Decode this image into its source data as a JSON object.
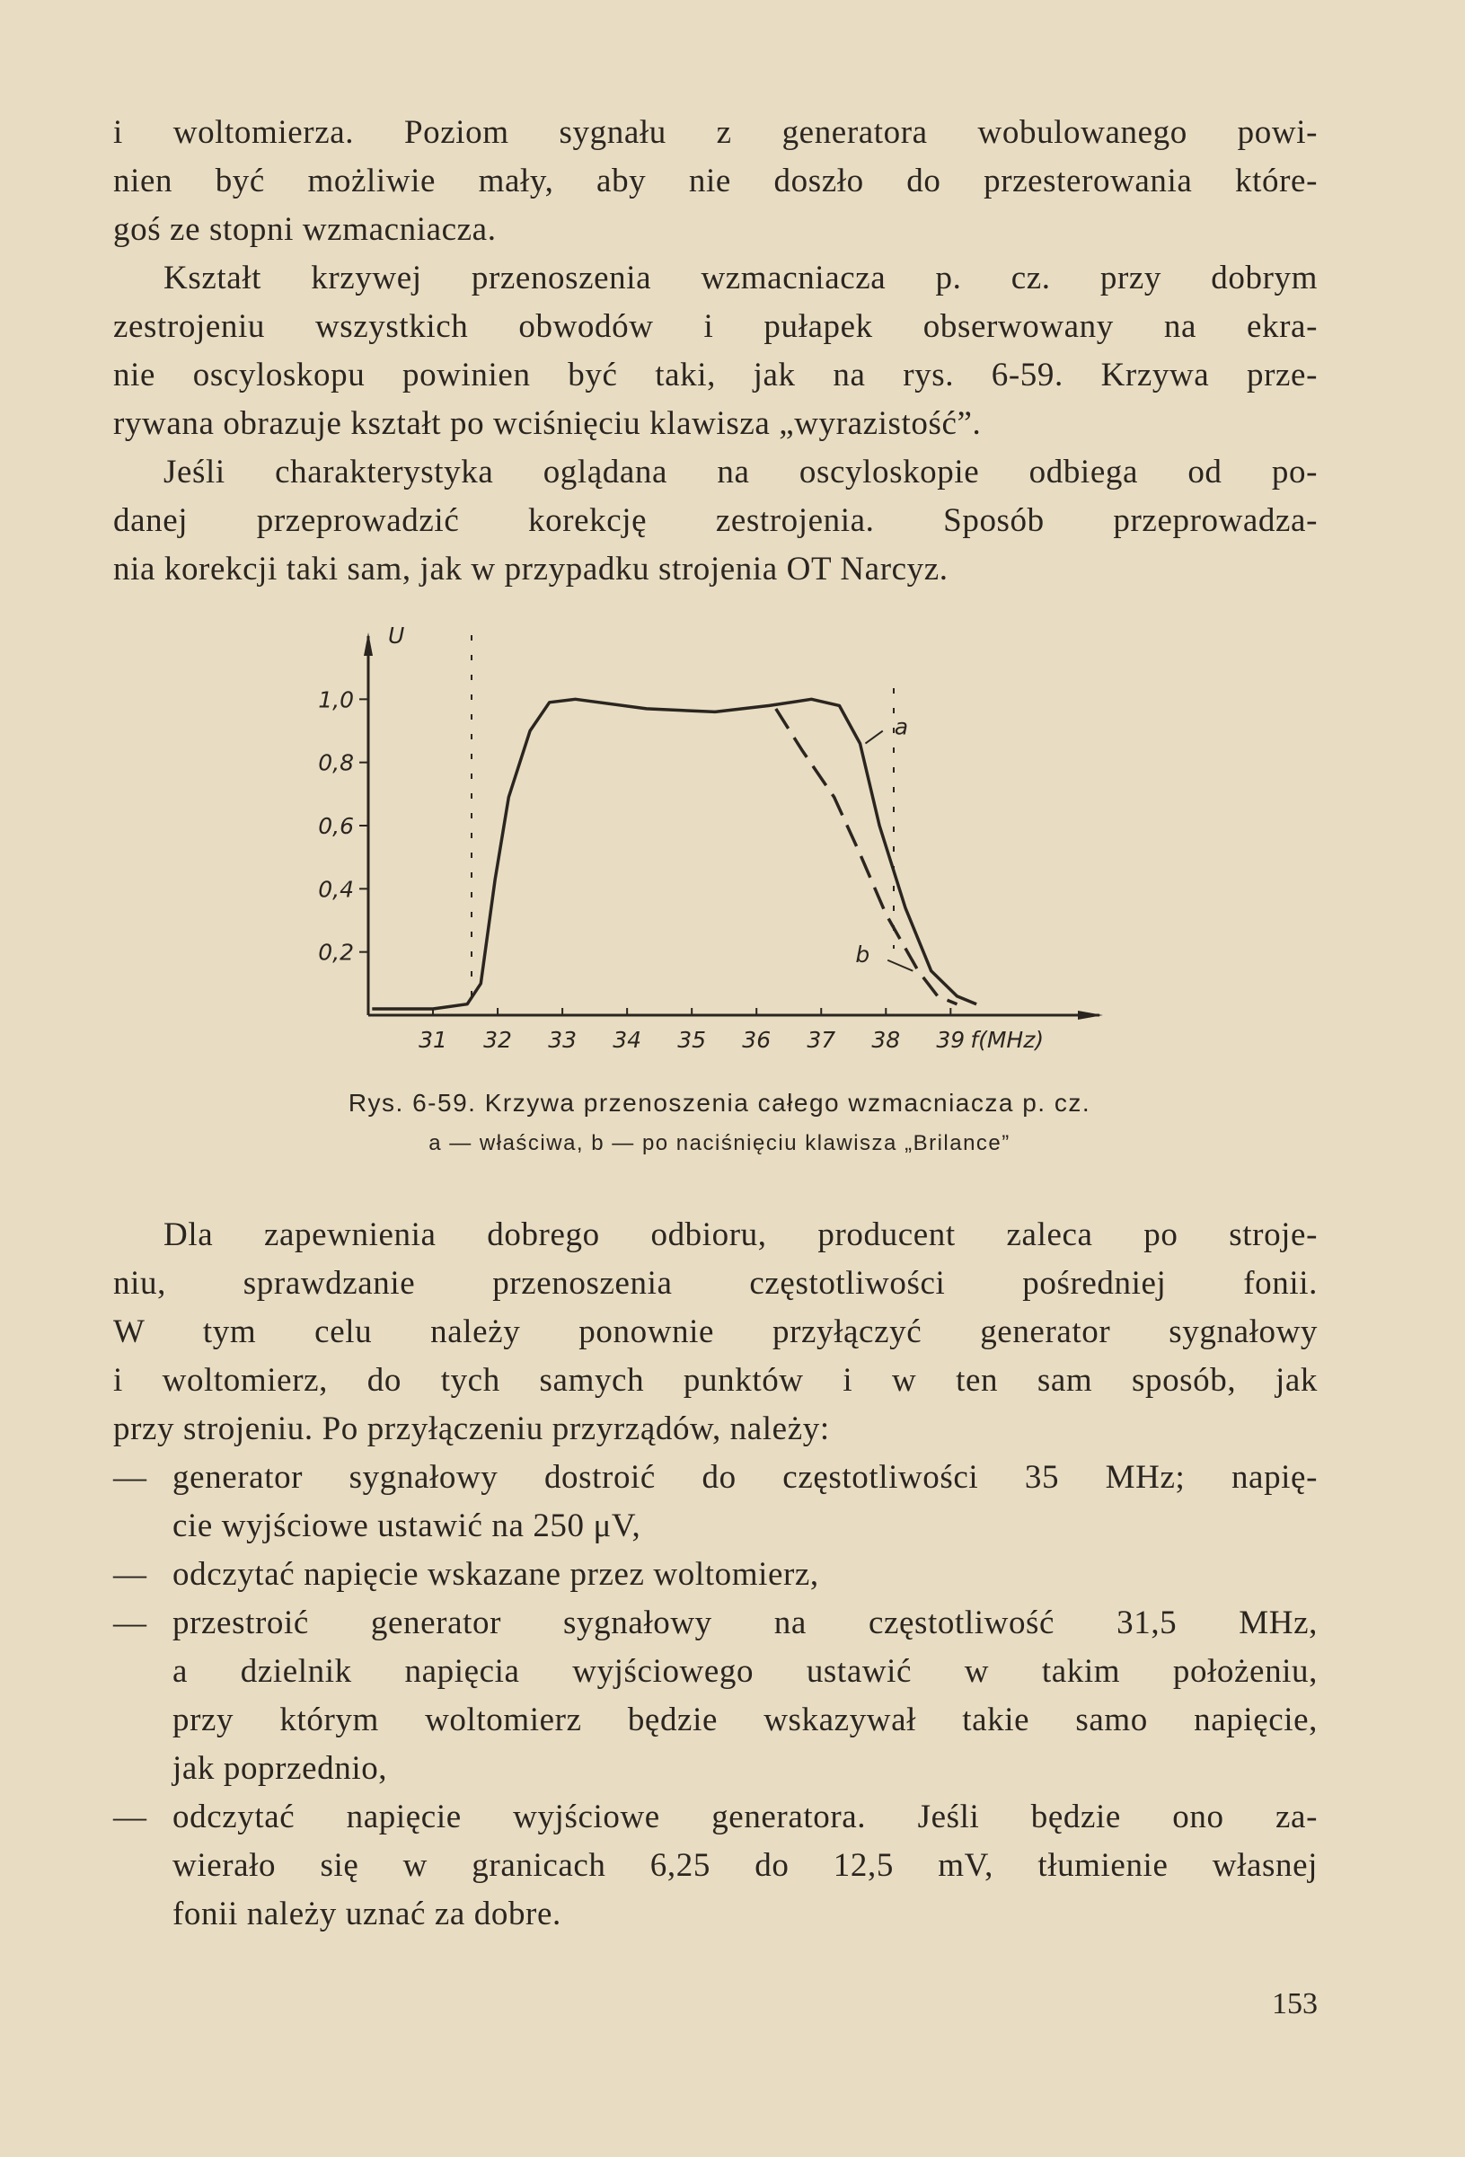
{
  "body_top": {
    "paragraphs": [
      {
        "lines": [
          "i woltomierza. Poziom sygnału z generatora wobulowanego powi-",
          "nien być możliwie mały, aby nie doszło do przesterowania które-",
          "goś ze stopni wzmacniacza."
        ]
      },
      {
        "lines": [
          "Kształt krzywej przenoszenia wzmacniacza p. cz. przy dobrym",
          "zestrojeniu wszystkich obwodów i pułapek obserwowany na ekra-",
          "nie oscyloskopu powinien być taki, jak na rys. 6-59. Krzywa prze-",
          "rywana obrazuje kształt po wciśnięciu klawisza „wyrazistość”."
        ]
      },
      {
        "lines": [
          "Jeśli charakterystyka oglądana na oscyloskopie odbiega od po-",
          "danej przeprowadzić korekcję zestrojenia. Sposób przeprowadza-",
          "nia korekcji taki sam, jak w przypadku strojenia OT Narcyz."
        ]
      }
    ]
  },
  "figure": {
    "chart_data": {
      "type": "line",
      "y_label": "U",
      "x_label": "f(MHz)",
      "xlim": [
        30,
        41.3
      ],
      "ylim": [
        0,
        1.2
      ],
      "xticks": [
        31,
        32,
        33,
        34,
        35,
        36,
        37,
        38,
        39
      ],
      "yticks": [
        {
          "value": 0.2,
          "label": "0,2"
        },
        {
          "value": 0.4,
          "label": "0,4"
        },
        {
          "value": 0.6,
          "label": "0,6"
        },
        {
          "value": 0.8,
          "label": "0,8"
        },
        {
          "value": 1,
          "label": "1,0"
        }
      ],
      "series": [
        {
          "name": "a",
          "color": "#2b2520",
          "dashed": false,
          "x": [
            30.06,
            31,
            31.53,
            31.74,
            31.96,
            32.17,
            32.5,
            32.8,
            33.2,
            34.3,
            35.36,
            36.2,
            36.85,
            37.28,
            37.6,
            37.9,
            38.3,
            38.7,
            39.1,
            39.4
          ],
          "values": [
            0.02,
            0.02,
            0.035,
            0.1,
            0.43,
            0.69,
            0.9,
            0.99,
            1.0,
            0.97,
            0.96,
            0.98,
            1.0,
            0.98,
            0.86,
            0.6,
            0.34,
            0.14,
            0.06,
            0.035
          ]
        },
        {
          "name": "b",
          "color": "#2b2520",
          "dashed": true,
          "x": [
            36.3,
            36.7,
            37.2,
            37.6,
            38.0,
            38.5,
            38.8,
            39.1
          ],
          "values": [
            0.97,
            0.84,
            0.69,
            0.51,
            0.32,
            0.14,
            0.06,
            0.035
          ]
        }
      ]
    },
    "caption": "Rys. 6-59. Krzywa przenoszenia całego wzmacniacza p. cz.",
    "legend_note": "a — właściwa, b — po naciśnięciu klawisza „Brilance”"
  },
  "body_bottom": {
    "paragraph": {
      "lines": [
        "Dla zapewnienia dobrego odbioru, producent zaleca po stroje-",
        "niu, sprawdzanie przenoszenia częstotliwości pośredniej fonii.",
        "W tym celu należy ponownie przyłączyć generator sygnałowy",
        "i woltomierz, do tych samych punktów i w ten sam sposób, jak",
        "przy strojeniu. Po przyłączeniu przyrządów, należy:"
      ]
    },
    "list": {
      "marker": "—",
      "items": [
        {
          "lines": [
            "generator sygnałowy dostroić do częstotliwości 35 MHz; napię-",
            "cie wyjściowe ustawić na 250 μV,"
          ]
        },
        {
          "lines": [
            "odczytać napięcie wskazane przez woltomierz,"
          ]
        },
        {
          "lines": [
            "przestroić generator sygnałowy na częstotliwość 31,5 MHz,",
            "a dzielnik napięcia wyjściowego ustawić w takim położeniu,",
            "przy którym woltomierz będzie wskazywał takie samo napięcie,",
            "jak poprzednio,"
          ]
        },
        {
          "lines": [
            "odczytać napięcie wyjściowe generatora. Jeśli będzie ono za-",
            "wierało się w granicach 6,25 do 12,5 mV, tłumienie własnej",
            "fonii należy uznać za dobre."
          ]
        }
      ]
    }
  },
  "page_number": "153"
}
